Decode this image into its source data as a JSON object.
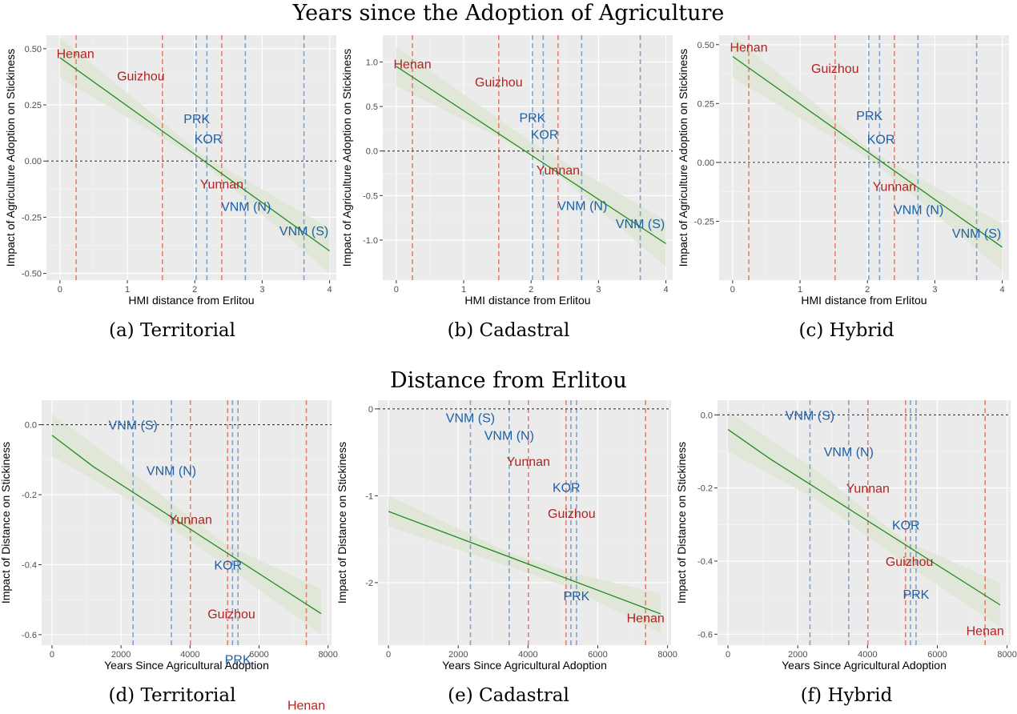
{
  "titles": {
    "top": "Years since the Adoption of Agriculture",
    "bottom": "Distance from Erlitou"
  },
  "colors": {
    "red": "#b22222",
    "blue": "#1f5fa6",
    "line": "#228b22",
    "ribbon": "#dfe6d6",
    "panel_bg": "#ebebeb",
    "vline_red": "#e08070",
    "vline_blue": "#7fa3cc"
  },
  "chart_data": [
    {
      "type": "line",
      "caption": "(a) Territorial",
      "xlabel": "HMI distance from Erlitou",
      "ylabel": "Impact of Agriculture Adoption on Stickiness",
      "xlim": [
        -0.2,
        4.1
      ],
      "ylim": [
        -0.53,
        0.56
      ],
      "xticks": [
        0,
        1,
        2,
        3,
        4
      ],
      "xtick_labels": [
        "0",
        "1",
        "2",
        "3",
        "4"
      ],
      "yticks": [
        -0.5,
        -0.25,
        0,
        0.25,
        0.5
      ],
      "ytick_labels": [
        "-0.50",
        "-0.25",
        "0.00",
        "0.25",
        "0.50"
      ],
      "hline": 0,
      "line": {
        "x": [
          0,
          4
        ],
        "y": [
          0.46,
          -0.4
        ]
      },
      "ribbon": {
        "x": [
          0,
          2.1,
          4
        ],
        "lower": [
          0.37,
          0.0,
          -0.5
        ],
        "upper": [
          0.55,
          0.03,
          -0.3
        ]
      },
      "vlines": [
        {
          "x": 0.24,
          "color": "red"
        },
        {
          "x": 1.52,
          "color": "red"
        },
        {
          "x": 2.02,
          "color": "blue"
        },
        {
          "x": 2.18,
          "color": "blue"
        },
        {
          "x": 2.4,
          "color": "red"
        },
        {
          "x": 2.75,
          "color": "blue"
        },
        {
          "x": 3.62,
          "color": "blue"
        }
      ],
      "labels": [
        {
          "text": "Henan",
          "x": 0.23,
          "y": 0.48,
          "color": "red"
        },
        {
          "text": "Guizhou",
          "x": 1.2,
          "y": 0.38,
          "color": "red"
        },
        {
          "text": "PRK",
          "x": 2.03,
          "y": 0.19,
          "color": "blue"
        },
        {
          "text": "KOR",
          "x": 2.2,
          "y": 0.1,
          "color": "blue"
        },
        {
          "text": "Yunnan",
          "x": 2.4,
          "y": -0.1,
          "color": "red"
        },
        {
          "text": "VNM (N)",
          "x": 2.76,
          "y": -0.2,
          "color": "blue"
        },
        {
          "text": "VNM (S)",
          "x": 3.62,
          "y": -0.31,
          "color": "blue"
        }
      ]
    },
    {
      "type": "line",
      "caption": "(b) Cadastral",
      "xlabel": "HMI distance from Erlitou",
      "ylabel": "Impact of Agriculture Adoption on Stickiness",
      "xlim": [
        -0.2,
        4.1
      ],
      "ylim": [
        -1.45,
        1.3
      ],
      "xticks": [
        0,
        1,
        2,
        3,
        4
      ],
      "xtick_labels": [
        "0",
        "1",
        "2",
        "3",
        "4"
      ],
      "yticks": [
        -1,
        -0.5,
        0,
        0.5,
        1
      ],
      "ytick_labels": [
        "-1.0",
        "-0.5",
        "0.0",
        "0.5",
        "1.0"
      ],
      "hline": 0,
      "line": {
        "x": [
          0,
          4
        ],
        "y": [
          0.95,
          -1.04
        ]
      },
      "ribbon": {
        "x": [
          0,
          2.1,
          4
        ],
        "lower": [
          0.73,
          -0.07,
          -1.3
        ],
        "upper": [
          1.17,
          0.05,
          -0.78
        ]
      },
      "vlines": [
        {
          "x": 0.24,
          "color": "red"
        },
        {
          "x": 1.52,
          "color": "red"
        },
        {
          "x": 2.02,
          "color": "blue"
        },
        {
          "x": 2.18,
          "color": "blue"
        },
        {
          "x": 2.4,
          "color": "red"
        },
        {
          "x": 2.75,
          "color": "blue"
        },
        {
          "x": 3.62,
          "color": "blue"
        }
      ],
      "labels": [
        {
          "text": "Henan",
          "x": 0.24,
          "y": 0.98,
          "color": "red"
        },
        {
          "text": "Guizhou",
          "x": 1.52,
          "y": 0.78,
          "color": "red"
        },
        {
          "text": "PRK",
          "x": 2.02,
          "y": 0.38,
          "color": "blue"
        },
        {
          "text": "KOR",
          "x": 2.2,
          "y": 0.19,
          "color": "blue"
        },
        {
          "text": "Yunnan",
          "x": 2.4,
          "y": -0.21,
          "color": "red"
        },
        {
          "text": "VNM (N)",
          "x": 2.76,
          "y": -0.61,
          "color": "blue"
        },
        {
          "text": "VNM (S)",
          "x": 3.62,
          "y": -0.81,
          "color": "blue"
        }
      ]
    },
    {
      "type": "line",
      "caption": "(c) Hybrid",
      "xlabel": "HMI distance from Erlitou",
      "ylabel": "Impact of Agriculture Adoption on Stickiness",
      "xlim": [
        -0.2,
        4.1
      ],
      "ylim": [
        -0.5,
        0.54
      ],
      "xticks": [
        0,
        1,
        2,
        3,
        4
      ],
      "xtick_labels": [
        "0",
        "1",
        "2",
        "3",
        "4"
      ],
      "yticks": [
        -0.25,
        0,
        0.25,
        0.5
      ],
      "ytick_labels": [
        "-0.25",
        "0.00",
        "0.25",
        "0.50"
      ],
      "hline": 0,
      "line": {
        "x": [
          0,
          4
        ],
        "y": [
          0.45,
          -0.36
        ]
      },
      "ribbon": {
        "x": [
          0,
          2.1,
          4
        ],
        "lower": [
          0.36,
          0.0,
          -0.46
        ],
        "upper": [
          0.54,
          0.04,
          -0.26
        ]
      },
      "vlines": [
        {
          "x": 0.24,
          "color": "red"
        },
        {
          "x": 1.52,
          "color": "red"
        },
        {
          "x": 2.02,
          "color": "blue"
        },
        {
          "x": 2.18,
          "color": "blue"
        },
        {
          "x": 2.4,
          "color": "red"
        },
        {
          "x": 2.75,
          "color": "blue"
        },
        {
          "x": 3.62,
          "color": "blue"
        }
      ],
      "labels": [
        {
          "text": "Henan",
          "x": 0.24,
          "y": 0.49,
          "color": "red"
        },
        {
          "text": "Guizhou",
          "x": 1.52,
          "y": 0.4,
          "color": "red"
        },
        {
          "text": "PRK",
          "x": 2.03,
          "y": 0.2,
          "color": "blue"
        },
        {
          "text": "KOR",
          "x": 2.2,
          "y": 0.1,
          "color": "blue"
        },
        {
          "text": "Yunnan",
          "x": 2.4,
          "y": -0.1,
          "color": "red"
        },
        {
          "text": "VNM (N)",
          "x": 2.76,
          "y": -0.2,
          "color": "blue"
        },
        {
          "text": "VNM (S)",
          "x": 3.62,
          "y": -0.3,
          "color": "blue"
        }
      ]
    },
    {
      "type": "line",
      "caption": "(d) Territorial",
      "xlabel": "Years Since Agricultural Adoption",
      "ylabel": "Impact of Distance on Stickiness",
      "xlim": [
        -300,
        8100
      ],
      "ylim": [
        -0.63,
        0.07
      ],
      "xticks": [
        0,
        2000,
        4000,
        6000,
        8000
      ],
      "xtick_labels": [
        "0",
        "2000",
        "4000",
        "6000",
        "8000"
      ],
      "yticks": [
        -0.6,
        -0.4,
        -0.2,
        0
      ],
      "ytick_labels": [
        "-0.6",
        "-0.4",
        "-0.2",
        "0.0"
      ],
      "hline": 0,
      "line": {
        "x": [
          0,
          1200,
          7800
        ],
        "y": [
          -0.03,
          -0.12,
          -0.54
        ]
      },
      "ribbon": {
        "x": [
          0,
          2500,
          5000,
          7800
        ],
        "lower": [
          -0.09,
          -0.23,
          -0.4,
          -0.6
        ],
        "upper": [
          0.03,
          -0.15,
          -0.34,
          -0.47
        ]
      },
      "vlines": [
        {
          "x": 2350,
          "color": "blue"
        },
        {
          "x": 3460,
          "color": "blue"
        },
        {
          "x": 4010,
          "color": "red"
        },
        {
          "x": 5090,
          "color": "red"
        },
        {
          "x": 5230,
          "color": "blue"
        },
        {
          "x": 5390,
          "color": "blue"
        },
        {
          "x": 7370,
          "color": "red"
        }
      ],
      "labels": [
        {
          "text": "VNM (S)",
          "x": 2350,
          "y": 0.0,
          "color": "blue"
        },
        {
          "text": "VNM (N)",
          "x": 3460,
          "y": -0.13,
          "color": "blue"
        },
        {
          "text": "Yunnan",
          "x": 4010,
          "y": -0.27,
          "color": "red"
        },
        {
          "text": "KOR",
          "x": 5100,
          "y": -0.4,
          "color": "blue"
        },
        {
          "text": "Guizhou",
          "x": 5200,
          "y": -0.54,
          "color": "red"
        },
        {
          "text": "PRK",
          "x": 5390,
          "y": -0.67,
          "color": "blue"
        },
        {
          "text": "Henan",
          "x": 7370,
          "y": -0.8,
          "color": "red"
        }
      ]
    },
    {
      "type": "line",
      "caption": "(e) Cadastral",
      "xlabel": "Years Since Agricultural Adoption",
      "ylabel": "Impact of Distance on Stickiness",
      "xlim": [
        -300,
        8100
      ],
      "ylim": [
        -2.72,
        0.1
      ],
      "xticks": [
        0,
        2000,
        4000,
        6000,
        8000
      ],
      "xtick_labels": [
        "0",
        "2000",
        "4000",
        "6000",
        "8000"
      ],
      "yticks": [
        -2,
        -1,
        0
      ],
      "ytick_labels": [
        "-2",
        "-1",
        "0"
      ],
      "hline": 0,
      "line": {
        "x": [
          0,
          7800
        ],
        "y": [
          -1.18,
          -2.36
        ]
      },
      "ribbon": {
        "x": [
          0,
          3500,
          5200,
          7800
        ],
        "lower": [
          -1.35,
          -1.82,
          -2.06,
          -2.58
        ],
        "upper": [
          -1.0,
          -1.66,
          -1.88,
          -2.13
        ]
      },
      "vlines": [
        {
          "x": 2350,
          "color": "blue"
        },
        {
          "x": 3460,
          "color": "blue"
        },
        {
          "x": 4010,
          "color": "red"
        },
        {
          "x": 5090,
          "color": "red"
        },
        {
          "x": 5230,
          "color": "blue"
        },
        {
          "x": 5390,
          "color": "blue"
        },
        {
          "x": 7370,
          "color": "red"
        }
      ],
      "labels": [
        {
          "text": "VNM (S)",
          "x": 2350,
          "y": -0.1,
          "color": "blue"
        },
        {
          "text": "VNM (N)",
          "x": 3460,
          "y": -0.3,
          "color": "blue"
        },
        {
          "text": "Yunnan",
          "x": 4010,
          "y": -0.6,
          "color": "red"
        },
        {
          "text": "KOR",
          "x": 5100,
          "y": -0.9,
          "color": "blue"
        },
        {
          "text": "Guizhou",
          "x": 5250,
          "y": -1.2,
          "color": "red"
        },
        {
          "text": "PRK",
          "x": 5390,
          "y": -2.15,
          "color": "blue"
        },
        {
          "text": "Henan",
          "x": 7370,
          "y": -2.4,
          "color": "red"
        }
      ]
    },
    {
      "type": "line",
      "caption": "(f) Hybrid",
      "xlabel": "Years Since Agricultural Adoption",
      "ylabel": "Impact of Distance on Stickiness",
      "xlim": [
        -300,
        8100
      ],
      "ylim": [
        -0.63,
        0.04
      ],
      "xticks": [
        0,
        2000,
        4000,
        6000,
        8000
      ],
      "xtick_labels": [
        "0",
        "2000",
        "4000",
        "6000",
        "8000"
      ],
      "yticks": [
        -0.6,
        -0.4,
        -0.2,
        0
      ],
      "ytick_labels": [
        "-0.6",
        "-0.4",
        "-0.2",
        "0.0"
      ],
      "hline": 0,
      "line": {
        "x": [
          0,
          1200,
          7800
        ],
        "y": [
          -0.04,
          -0.12,
          -0.52
        ]
      },
      "ribbon": {
        "x": [
          0,
          2500,
          5000,
          7800
        ],
        "lower": [
          -0.1,
          -0.23,
          -0.4,
          -0.58
        ],
        "upper": [
          0.01,
          -0.15,
          -0.34,
          -0.46
        ]
      },
      "vlines": [
        {
          "x": 2350,
          "color": "blue"
        },
        {
          "x": 3460,
          "color": "blue"
        },
        {
          "x": 4010,
          "color": "red"
        },
        {
          "x": 5090,
          "color": "red"
        },
        {
          "x": 5230,
          "color": "blue"
        },
        {
          "x": 5390,
          "color": "blue"
        },
        {
          "x": 7370,
          "color": "red"
        }
      ],
      "labels": [
        {
          "text": "VNM (S)",
          "x": 2350,
          "y": 0.0,
          "color": "blue"
        },
        {
          "text": "VNM (N)",
          "x": 3460,
          "y": -0.1,
          "color": "blue"
        },
        {
          "text": "Yunnan",
          "x": 4010,
          "y": -0.2,
          "color": "red"
        },
        {
          "text": "KOR",
          "x": 5100,
          "y": -0.3,
          "color": "blue"
        },
        {
          "text": "Guizhou",
          "x": 5200,
          "y": -0.4,
          "color": "red"
        },
        {
          "text": "PRK",
          "x": 5390,
          "y": -0.49,
          "color": "blue"
        },
        {
          "text": "Henan",
          "x": 7370,
          "y": -0.59,
          "color": "red"
        }
      ]
    }
  ]
}
